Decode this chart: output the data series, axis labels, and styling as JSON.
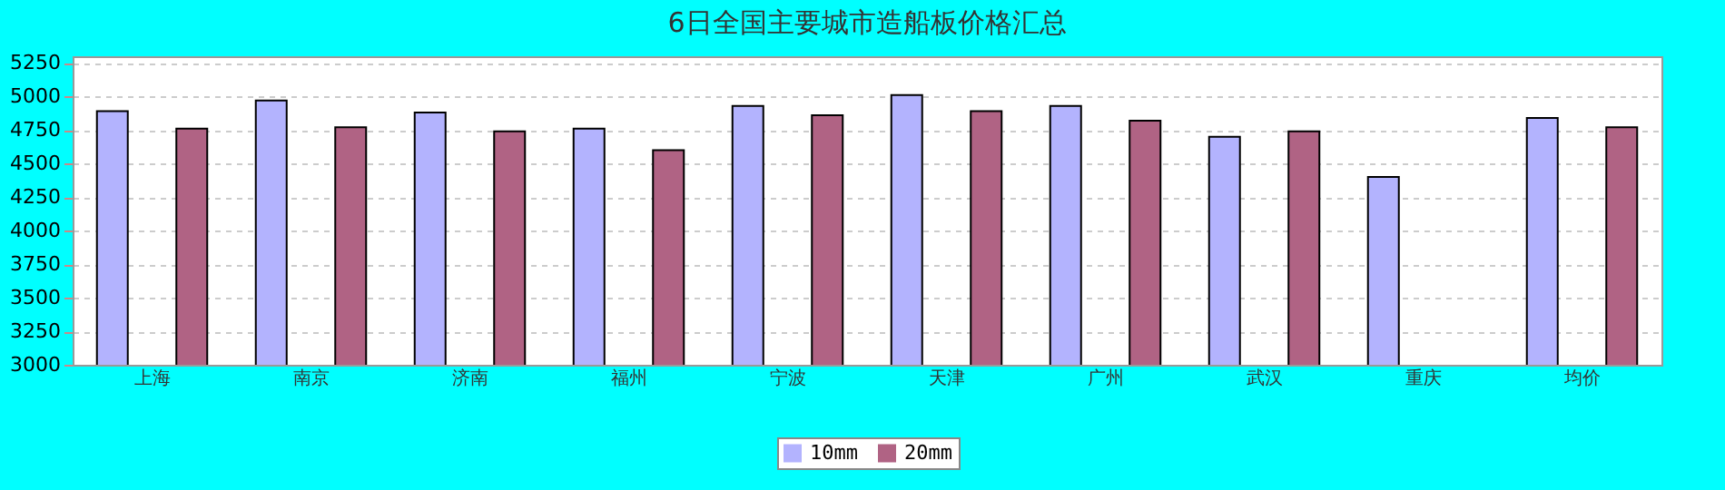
{
  "chart_data": {
    "type": "bar",
    "title": "6日全国主要城市造船板价格汇总",
    "categories": [
      "上海",
      "南京",
      "济南",
      "福州",
      "宁波",
      "天津",
      "广州",
      "武汉",
      "重庆",
      "均价"
    ],
    "series": [
      {
        "name": "10mm",
        "color": "#b3b3fe",
        "values": [
          4890,
          4970,
          4880,
          4760,
          4930,
          5010,
          4930,
          4700,
          4400,
          4840
        ]
      },
      {
        "name": "20mm",
        "color": "#b06384",
        "values": [
          4760,
          4770,
          4740,
          4600,
          4860,
          4890,
          4820,
          4740,
          null,
          4770
        ]
      }
    ],
    "ylim": [
      3000,
      5300
    ],
    "yticks": [
      3000,
      3250,
      3500,
      3750,
      4000,
      4250,
      4500,
      4750,
      5000,
      5250
    ],
    "grid": "y",
    "legend": "bottom"
  }
}
